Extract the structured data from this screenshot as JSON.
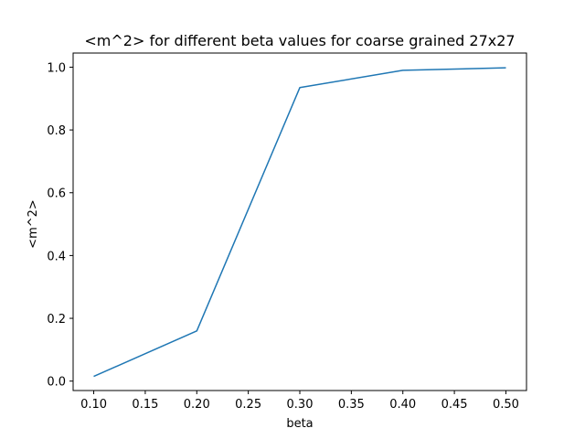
{
  "chart_data": {
    "type": "line",
    "title": "<m^2> for different beta values for coarse grained 27x27",
    "xlabel": "beta",
    "ylabel": "<m^2>",
    "xlim": [
      0.08,
      0.52
    ],
    "ylim": [
      -0.03,
      1.045
    ],
    "xticks": [
      0.1,
      0.15,
      0.2,
      0.25,
      0.3,
      0.35,
      0.4,
      0.45,
      0.5
    ],
    "xtick_labels": [
      "0.10",
      "0.15",
      "0.20",
      "0.25",
      "0.30",
      "0.35",
      "0.40",
      "0.45",
      "0.50"
    ],
    "yticks": [
      0.0,
      0.2,
      0.4,
      0.6,
      0.8,
      1.0
    ],
    "ytick_labels": [
      "0.0",
      "0.2",
      "0.4",
      "0.6",
      "0.8",
      "1.0"
    ],
    "grid": false,
    "series": [
      {
        "color": "#1f77b4",
        "x": [
          0.1,
          0.2,
          0.3,
          0.4,
          0.5
        ],
        "y": [
          0.015,
          0.16,
          0.935,
          0.99,
          0.998
        ]
      }
    ]
  }
}
